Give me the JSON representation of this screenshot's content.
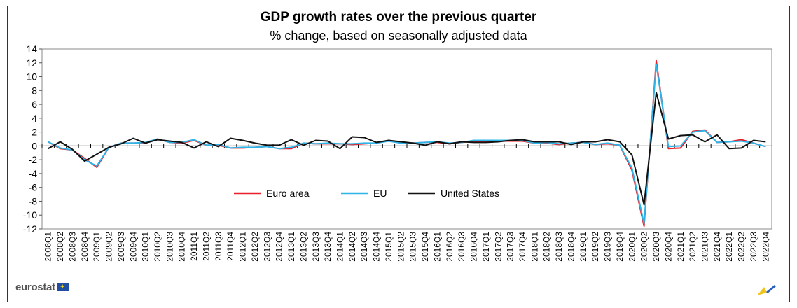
{
  "chart_data": {
    "type": "line",
    "title": "GDP growth rates over the previous quarter",
    "subtitle": "% change, based on seasonally adjusted data",
    "ylim": [
      -12,
      14
    ],
    "yticks": [
      14,
      12,
      10,
      8,
      6,
      4,
      2,
      0,
      -2,
      -4,
      -6,
      -8,
      -10,
      -12
    ],
    "grid": false,
    "legend": "center-left",
    "categories": [
      "2008Q1",
      "2008Q2",
      "2008Q3",
      "2008Q4",
      "2009Q1",
      "2009Q2",
      "2009Q3",
      "2009Q4",
      "2010Q1",
      "2010Q2",
      "2010Q3",
      "2010Q4",
      "2011Q1",
      "2011Q2",
      "2011Q3",
      "2011Q4",
      "2012Q1",
      "2012Q2",
      "2012Q3",
      "2012Q4",
      "2013Q1",
      "2013Q2",
      "2013Q3",
      "2013Q4",
      "2014Q1",
      "2014Q2",
      "2014Q3",
      "2014Q4",
      "2015Q1",
      "2015Q2",
      "2015Q3",
      "2015Q4",
      "2016Q1",
      "2016Q2",
      "2016Q3",
      "2016Q4",
      "2017Q1",
      "2017Q2",
      "2017Q3",
      "2017Q4",
      "2018Q1",
      "2018Q2",
      "2018Q3",
      "2018Q4",
      "2019Q1",
      "2019Q2",
      "2019Q3",
      "2019Q4",
      "2020Q1",
      "2020Q2",
      "2020Q3",
      "2020Q4",
      "2021Q1",
      "2021Q2",
      "2021Q3",
      "2021Q4",
      "2022Q1",
      "2022Q2",
      "2022Q3",
      "2022Q4"
    ],
    "series": [
      {
        "name": "Euro area",
        "color": "#e8202a",
        "values": [
          0.6,
          -0.4,
          -0.6,
          -1.8,
          -3.1,
          -0.2,
          0.4,
          0.4,
          0.4,
          1.0,
          0.5,
          0.4,
          0.8,
          0.1,
          0.1,
          -0.3,
          -0.3,
          -0.2,
          -0.1,
          -0.4,
          -0.4,
          0.4,
          0.3,
          0.3,
          0.3,
          0.2,
          0.3,
          0.4,
          0.8,
          0.4,
          0.4,
          0.5,
          0.5,
          0.3,
          0.5,
          0.7,
          0.7,
          0.7,
          0.7,
          0.7,
          0.4,
          0.4,
          0.2,
          0.4,
          0.5,
          0.2,
          0.3,
          0.1,
          -3.5,
          -11.6,
          12.3,
          -0.4,
          -0.3,
          2.1,
          2.3,
          0.5,
          0.6,
          0.9,
          0.4,
          -0.1
        ]
      },
      {
        "name": "EU",
        "color": "#2fb4e8",
        "values": [
          0.6,
          -0.3,
          -0.6,
          -2.0,
          -2.9,
          -0.2,
          0.4,
          0.4,
          0.5,
          1.0,
          0.5,
          0.5,
          0.9,
          0.1,
          0.2,
          -0.3,
          -0.2,
          -0.2,
          -0.1,
          -0.4,
          -0.2,
          0.4,
          0.3,
          0.4,
          0.3,
          0.3,
          0.4,
          0.4,
          0.7,
          0.4,
          0.4,
          0.5,
          0.6,
          0.4,
          0.5,
          0.8,
          0.8,
          0.8,
          0.8,
          0.8,
          0.4,
          0.5,
          0.3,
          0.4,
          0.5,
          0.2,
          0.4,
          0.1,
          -3.2,
          -11.2,
          11.8,
          -0.1,
          0.0,
          2.0,
          2.2,
          0.5,
          0.6,
          0.7,
          0.4,
          -0.1
        ]
      },
      {
        "name": "United States",
        "color": "#111111",
        "values": [
          -0.4,
          0.6,
          -0.5,
          -2.2,
          -1.2,
          -0.2,
          0.3,
          1.1,
          0.4,
          0.9,
          0.7,
          0.5,
          -0.3,
          0.6,
          -0.1,
          1.1,
          0.8,
          0.4,
          0.1,
          0.1,
          0.9,
          0.1,
          0.8,
          0.7,
          -0.4,
          1.3,
          1.2,
          0.5,
          0.8,
          0.6,
          0.4,
          0.1,
          0.6,
          0.3,
          0.6,
          0.5,
          0.5,
          0.6,
          0.8,
          0.9,
          0.6,
          0.6,
          0.6,
          0.2,
          0.6,
          0.6,
          0.9,
          0.6,
          -1.3,
          -8.5,
          7.7,
          1.0,
          1.5,
          1.6,
          0.6,
          1.6,
          -0.4,
          -0.3,
          0.8,
          0.6
        ]
      }
    ]
  },
  "footer": {
    "logo_text": "eurostat"
  },
  "colors": {
    "eu_flag": "#1f4ea3",
    "brand_yellow": "#f0c419",
    "brand_blue": "#2d5fbf"
  }
}
